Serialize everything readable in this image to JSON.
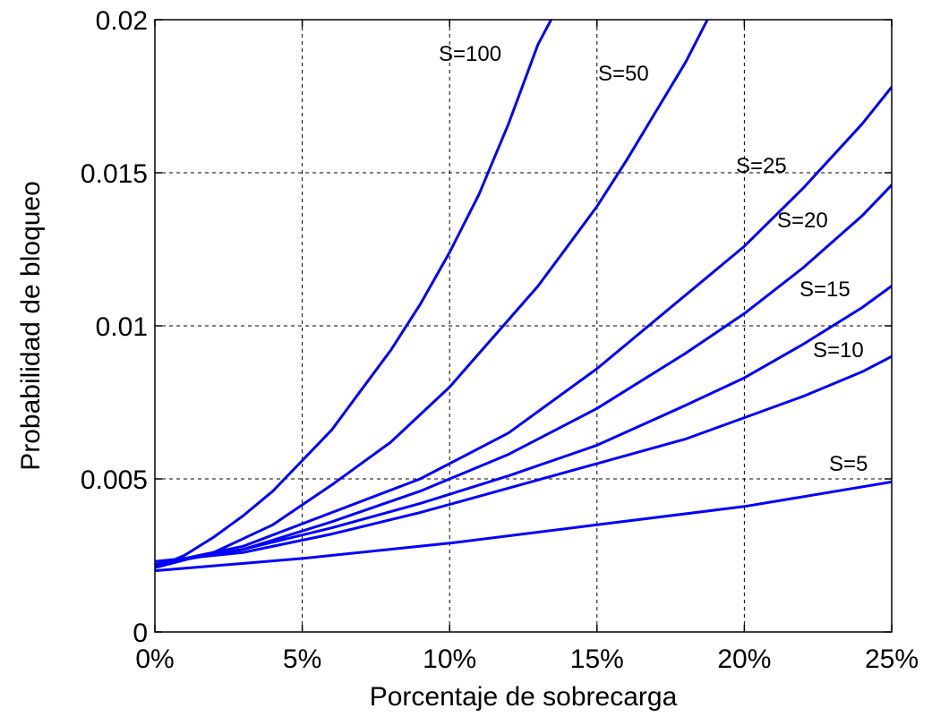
{
  "chart_data": {
    "type": "line",
    "xlabel": "Porcentaje de sobrecarga",
    "ylabel": "Probabilidad de bloqueo",
    "xlim": [
      0,
      25
    ],
    "ylim": [
      0,
      0.02
    ],
    "x_ticks": [
      0,
      5,
      10,
      15,
      20,
      25
    ],
    "x_tick_labels": [
      "0%",
      "5%",
      "10%",
      "15%",
      "20%",
      "25%"
    ],
    "y_ticks": [
      0,
      0.005,
      0.01,
      0.015,
      0.02
    ],
    "y_tick_labels": [
      "0",
      "0.005",
      "0.01",
      "0.015",
      "0.02"
    ],
    "grid": true,
    "line_color": "#0000ff",
    "series": [
      {
        "name": "S=100",
        "x": [
          0,
          1,
          2,
          3,
          4,
          5,
          6,
          7,
          8,
          9,
          10,
          11,
          12,
          13,
          13.5
        ],
        "values": [
          0.0021,
          0.0025,
          0.0031,
          0.0038,
          0.0046,
          0.0056,
          0.0066,
          0.0079,
          0.0092,
          0.0107,
          0.0124,
          0.0143,
          0.0166,
          0.0192,
          0.0201
        ]
      },
      {
        "name": "S=50",
        "x": [
          0,
          2,
          4,
          6,
          8,
          10,
          11,
          12,
          13,
          14,
          15,
          16,
          17,
          18,
          18.8
        ],
        "values": [
          0.0021,
          0.0026,
          0.0035,
          0.0048,
          0.0062,
          0.008,
          0.0091,
          0.0102,
          0.0113,
          0.0126,
          0.0139,
          0.0154,
          0.017,
          0.0186,
          0.0201
        ]
      },
      {
        "name": "S=25",
        "x": [
          0,
          3,
          6,
          9,
          12,
          15,
          18,
          20,
          22,
          24,
          25
        ],
        "values": [
          0.0022,
          0.0028,
          0.0039,
          0.005,
          0.0065,
          0.0086,
          0.011,
          0.0126,
          0.0145,
          0.0166,
          0.0178
        ]
      },
      {
        "name": "S=20",
        "x": [
          0,
          3,
          6,
          9,
          12,
          15,
          18,
          20,
          22,
          24,
          25
        ],
        "values": [
          0.0022,
          0.0027,
          0.0036,
          0.0046,
          0.0058,
          0.0073,
          0.0091,
          0.0104,
          0.0119,
          0.0136,
          0.0146
        ]
      },
      {
        "name": "S=15",
        "x": [
          0,
          3,
          6,
          9,
          12,
          15,
          18,
          20,
          22,
          24,
          25
        ],
        "values": [
          0.0022,
          0.0027,
          0.0034,
          0.0042,
          0.0051,
          0.0061,
          0.0074,
          0.0083,
          0.0094,
          0.0106,
          0.0113
        ]
      },
      {
        "name": "S=10",
        "x": [
          0,
          3,
          6,
          9,
          12,
          15,
          18,
          20,
          22,
          24,
          25
        ],
        "values": [
          0.0023,
          0.0026,
          0.0032,
          0.0039,
          0.0047,
          0.0055,
          0.0063,
          0.007,
          0.0077,
          0.0085,
          0.009
        ]
      },
      {
        "name": "S=5",
        "x": [
          0,
          5,
          10,
          15,
          20,
          25
        ],
        "values": [
          0.002,
          0.0024,
          0.0029,
          0.0035,
          0.0041,
          0.0049
        ]
      }
    ],
    "annotations": [
      "S=100",
      "S=50",
      "S=25",
      "S=20",
      "S=15",
      "S=10",
      "S=5"
    ]
  }
}
